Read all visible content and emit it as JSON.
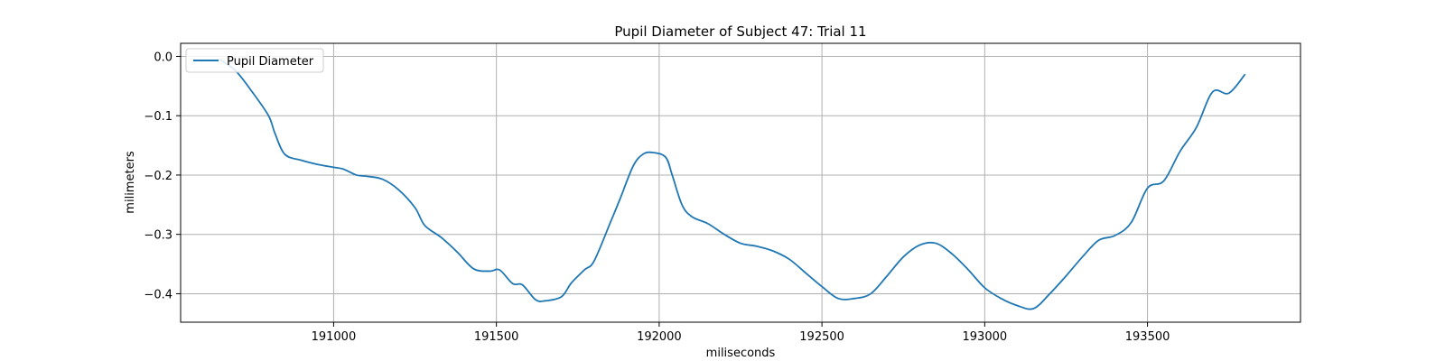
{
  "chart_data": {
    "type": "line",
    "title": "Pupil Diameter of Subject 47: Trial 11",
    "xlabel": "miliseconds",
    "ylabel": "milimeters",
    "xlim": [
      190530,
      193970
    ],
    "ylim": [
      -0.448,
      0.022
    ],
    "xticks": [
      191000,
      191500,
      192000,
      192500,
      193000,
      193500
    ],
    "yticks": [
      0.0,
      -0.1,
      -0.2,
      -0.3,
      -0.4
    ],
    "ytick_labels": [
      "0.0",
      "−0.1",
      "−0.2",
      "−0.3",
      "−0.4"
    ],
    "grid": true,
    "legend_position": "top-left",
    "series": [
      {
        "name": "Pupil Diameter",
        "color": "#1f77b4",
        "x": [
          190650,
          190700,
          190750,
          190800,
          190820,
          190850,
          190900,
          190950,
          191000,
          191030,
          191070,
          191100,
          191150,
          191200,
          191250,
          191280,
          191330,
          191380,
          191430,
          191480,
          191510,
          191550,
          191580,
          191620,
          191650,
          191700,
          191730,
          191770,
          191800,
          191850,
          191880,
          191920,
          191950,
          191980,
          192020,
          192040,
          192070,
          192100,
          192150,
          192200,
          192250,
          192300,
          192350,
          192400,
          192450,
          192500,
          192550,
          192600,
          192650,
          192700,
          192750,
          192800,
          192850,
          192900,
          192950,
          193000,
          193050,
          193100,
          193150,
          193200,
          193250,
          193300,
          193350,
          193400,
          193450,
          193500,
          193550,
          193600,
          193650,
          193700,
          193750,
          193800
        ],
        "y": [
          -0.005,
          -0.025,
          -0.06,
          -0.1,
          -0.13,
          -0.165,
          -0.175,
          -0.182,
          -0.187,
          -0.19,
          -0.2,
          -0.202,
          -0.207,
          -0.225,
          -0.255,
          -0.285,
          -0.305,
          -0.33,
          -0.358,
          -0.362,
          -0.36,
          -0.383,
          -0.385,
          -0.41,
          -0.412,
          -0.405,
          -0.382,
          -0.36,
          -0.345,
          -0.28,
          -0.24,
          -0.185,
          -0.165,
          -0.162,
          -0.17,
          -0.2,
          -0.25,
          -0.27,
          -0.282,
          -0.3,
          -0.315,
          -0.32,
          -0.328,
          -0.342,
          -0.365,
          -0.388,
          -0.408,
          -0.408,
          -0.4,
          -0.37,
          -0.338,
          -0.318,
          -0.315,
          -0.333,
          -0.36,
          -0.39,
          -0.408,
          -0.42,
          -0.425,
          -0.4,
          -0.37,
          -0.338,
          -0.31,
          -0.302,
          -0.28,
          -0.222,
          -0.21,
          -0.16,
          -0.12,
          -0.06,
          -0.062,
          -0.03
        ]
      }
    ]
  }
}
